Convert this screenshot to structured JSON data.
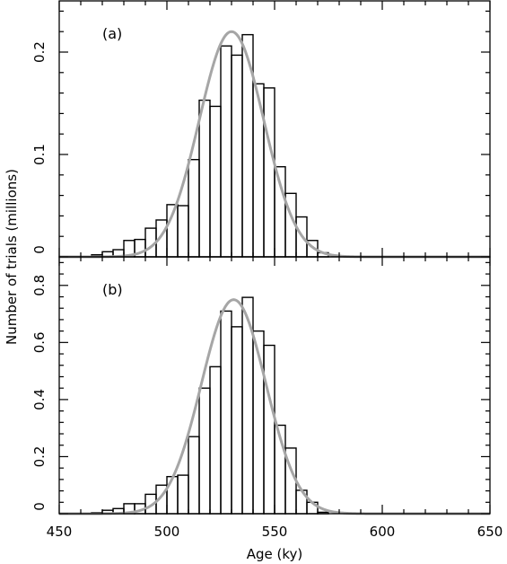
{
  "chart_data": {
    "type": "bar",
    "ylabel": "Number of trials (millions)",
    "xlabel": "Age (ky)",
    "xlim": [
      450,
      650
    ],
    "x_ticks": [
      "450",
      "500",
      "550",
      "600",
      "650"
    ],
    "bin_width": 5,
    "curve_color": "#a6a6a6",
    "bar_color": "#000000",
    "panels": [
      {
        "label": "(a)",
        "ylim": [
          0,
          0.25
        ],
        "y_ticks": [
          "0",
          "0.1",
          "0.2"
        ],
        "bins": [
          {
            "x0": 465,
            "x1": 470,
            "value": 0.002
          },
          {
            "x0": 470,
            "x1": 475,
            "value": 0.005
          },
          {
            "x0": 475,
            "x1": 480,
            "value": 0.007
          },
          {
            "x0": 480,
            "x1": 485,
            "value": 0.016
          },
          {
            "x0": 485,
            "x1": 490,
            "value": 0.017
          },
          {
            "x0": 490,
            "x1": 495,
            "value": 0.028
          },
          {
            "x0": 495,
            "x1": 500,
            "value": 0.036
          },
          {
            "x0": 500,
            "x1": 505,
            "value": 0.051
          },
          {
            "x0": 505,
            "x1": 510,
            "value": 0.05
          },
          {
            "x0": 510,
            "x1": 515,
            "value": 0.095
          },
          {
            "x0": 515,
            "x1": 520,
            "value": 0.153
          },
          {
            "x0": 520,
            "x1": 525,
            "value": 0.147
          },
          {
            "x0": 525,
            "x1": 530,
            "value": 0.206
          },
          {
            "x0": 530,
            "x1": 535,
            "value": 0.197
          },
          {
            "x0": 535,
            "x1": 540,
            "value": 0.217
          },
          {
            "x0": 540,
            "x1": 545,
            "value": 0.169
          },
          {
            "x0": 545,
            "x1": 550,
            "value": 0.165
          },
          {
            "x0": 550,
            "x1": 555,
            "value": 0.088
          },
          {
            "x0": 555,
            "x1": 560,
            "value": 0.062
          },
          {
            "x0": 560,
            "x1": 565,
            "value": 0.039
          },
          {
            "x0": 565,
            "x1": 570,
            "value": 0.016
          },
          {
            "x0": 570,
            "x1": 575,
            "value": 0.004
          }
        ],
        "curve": {
          "mean": 530,
          "sigma": 15,
          "peak": 0.22
        }
      },
      {
        "label": "(b)",
        "ylim": [
          0,
          0.9
        ],
        "y_ticks": [
          "0",
          "0.2",
          "0.4",
          "0.6",
          "0.8"
        ],
        "bins": [
          {
            "x0": 465,
            "x1": 470,
            "value": 0.004
          },
          {
            "x0": 470,
            "x1": 475,
            "value": 0.012
          },
          {
            "x0": 475,
            "x1": 480,
            "value": 0.018
          },
          {
            "x0": 480,
            "x1": 485,
            "value": 0.035
          },
          {
            "x0": 485,
            "x1": 490,
            "value": 0.035
          },
          {
            "x0": 490,
            "x1": 495,
            "value": 0.068
          },
          {
            "x0": 495,
            "x1": 500,
            "value": 0.1
          },
          {
            "x0": 500,
            "x1": 505,
            "value": 0.13
          },
          {
            "x0": 505,
            "x1": 510,
            "value": 0.135
          },
          {
            "x0": 510,
            "x1": 515,
            "value": 0.27
          },
          {
            "x0": 515,
            "x1": 520,
            "value": 0.44
          },
          {
            "x0": 520,
            "x1": 525,
            "value": 0.515
          },
          {
            "x0": 525,
            "x1": 530,
            "value": 0.71
          },
          {
            "x0": 530,
            "x1": 535,
            "value": 0.655
          },
          {
            "x0": 535,
            "x1": 540,
            "value": 0.758
          },
          {
            "x0": 540,
            "x1": 545,
            "value": 0.64
          },
          {
            "x0": 545,
            "x1": 550,
            "value": 0.59
          },
          {
            "x0": 550,
            "x1": 555,
            "value": 0.31
          },
          {
            "x0": 555,
            "x1": 560,
            "value": 0.23
          },
          {
            "x0": 560,
            "x1": 565,
            "value": 0.082
          },
          {
            "x0": 565,
            "x1": 570,
            "value": 0.04
          },
          {
            "x0": 570,
            "x1": 575,
            "value": 0.005
          }
        ],
        "curve": {
          "mean": 531,
          "sigma": 15,
          "peak": 0.75
        }
      }
    ]
  }
}
